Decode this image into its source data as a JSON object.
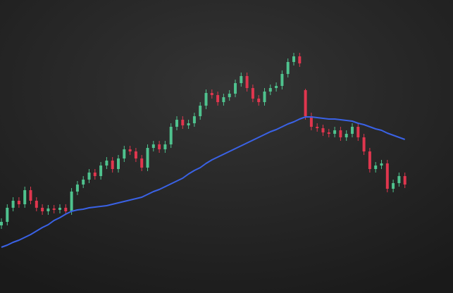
{
  "chart_data": {
    "type": "candlestick",
    "ylim": [
      0,
      416
    ],
    "up_color": "#4fc28e",
    "down_color": "#e0364e",
    "open": [
      96,
      101,
      121,
      131,
      126,
      146,
      131,
      121,
      116,
      120,
      118,
      121,
      116,
      144,
      154,
      161,
      171,
      166,
      181,
      188,
      176,
      191,
      204,
      201,
      191,
      178,
      206,
      211,
      204,
      211,
      236,
      246,
      238,
      241,
      251,
      266,
      284,
      281,
      271,
      278,
      283,
      298,
      308,
      291,
      276,
      271,
      286,
      291,
      294,
      311,
      328,
      336,
      288,
      251,
      236,
      234,
      228,
      226,
      231,
      221,
      226,
      236,
      221,
      201,
      176,
      181,
      184,
      148,
      156,
      166
    ],
    "high": [
      106,
      126,
      136,
      136,
      151,
      151,
      136,
      126,
      125,
      125,
      126,
      126,
      149,
      159,
      166,
      176,
      176,
      186,
      193,
      193,
      196,
      209,
      209,
      206,
      196,
      211,
      216,
      216,
      216,
      241,
      251,
      251,
      246,
      256,
      271,
      289,
      289,
      286,
      283,
      288,
      303,
      313,
      313,
      296,
      281,
      291,
      296,
      299,
      316,
      333,
      341,
      341,
      290,
      256,
      241,
      239,
      233,
      236,
      236,
      231,
      241,
      241,
      226,
      206,
      186,
      189,
      189,
      161,
      171,
      171
    ],
    "low": [
      91,
      96,
      116,
      121,
      121,
      126,
      116,
      111,
      111,
      113,
      113,
      111,
      111,
      139,
      149,
      156,
      161,
      161,
      176,
      171,
      171,
      186,
      196,
      186,
      173,
      173,
      201,
      199,
      199,
      206,
      231,
      233,
      233,
      236,
      246,
      261,
      276,
      266,
      266,
      273,
      278,
      293,
      286,
      271,
      266,
      266,
      281,
      286,
      289,
      306,
      323,
      321,
      246,
      231,
      229,
      223,
      221,
      221,
      216,
      216,
      221,
      216,
      196,
      171,
      171,
      176,
      143,
      143,
      151,
      149
    ],
    "close": [
      101,
      121,
      131,
      126,
      146,
      131,
      121,
      116,
      120,
      118,
      121,
      116,
      144,
      154,
      161,
      171,
      166,
      181,
      188,
      176,
      191,
      204,
      201,
      191,
      178,
      206,
      211,
      204,
      211,
      236,
      246,
      238,
      241,
      251,
      266,
      284,
      281,
      271,
      278,
      283,
      298,
      308,
      291,
      276,
      271,
      286,
      291,
      294,
      311,
      328,
      336,
      326,
      251,
      236,
      234,
      228,
      226,
      231,
      221,
      226,
      236,
      221,
      201,
      176,
      181,
      184,
      148,
      156,
      166,
      154
    ],
    "moving_average": {
      "color": "#3a62e6",
      "values": [
        65,
        68,
        72,
        75,
        79,
        83,
        88,
        93,
        97,
        103,
        107,
        112,
        116,
        118,
        119,
        121,
        122,
        123,
        124,
        126,
        128,
        130,
        132,
        134,
        136,
        140,
        144,
        147,
        151,
        155,
        159,
        163,
        169,
        174,
        178,
        184,
        189,
        193,
        197,
        201,
        205,
        209,
        213,
        217,
        221,
        225,
        229,
        232,
        236,
        240,
        243,
        247,
        250,
        250,
        249,
        248,
        247,
        247,
        246,
        245,
        244,
        241,
        239,
        236,
        233,
        231,
        227,
        224,
        221,
        218
      ]
    }
  }
}
